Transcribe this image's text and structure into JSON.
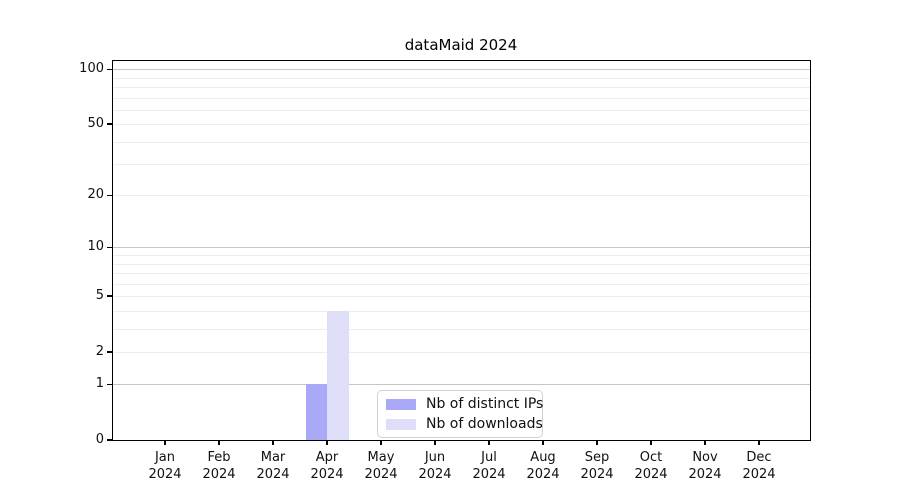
{
  "chart_data": {
    "type": "bar",
    "title": "dataMaid 2024",
    "categories": [
      "Jan",
      "Feb",
      "Mar",
      "Apr",
      "May",
      "Jun",
      "Jul",
      "Aug",
      "Sep",
      "Oct",
      "Nov",
      "Dec"
    ],
    "x_year_suffix": "2024",
    "series": [
      {
        "name": "Nb of distinct IPs",
        "color": "#a9a9f7",
        "values": [
          0,
          0,
          0,
          1,
          0,
          0,
          0,
          0,
          0,
          0,
          0,
          0
        ]
      },
      {
        "name": "Nb of downloads",
        "color": "#dedef9",
        "values": [
          0,
          0,
          0,
          4,
          0,
          0,
          0,
          0,
          0,
          0,
          0,
          0
        ]
      }
    ],
    "xlabel": "",
    "ylabel": "",
    "yscale": "log1p",
    "ylim": [
      0,
      113
    ],
    "yticks": [
      0,
      1,
      2,
      5,
      10,
      20,
      50,
      100
    ],
    "grid": {
      "major_values": [
        1,
        10,
        100
      ],
      "minor_values": [
        2,
        3,
        4,
        5,
        6,
        7,
        8,
        9,
        20,
        30,
        40,
        50,
        60,
        70,
        80,
        90
      ],
      "major_color": "#c6c6c6",
      "minor_color": "#ededed"
    },
    "legend": {
      "entries": [
        "Nb of distinct IPs",
        "Nb of downloads"
      ],
      "position": "lower center inside"
    },
    "frame_color": "#000000",
    "text_color": "#111111",
    "background": "#ffffff"
  }
}
